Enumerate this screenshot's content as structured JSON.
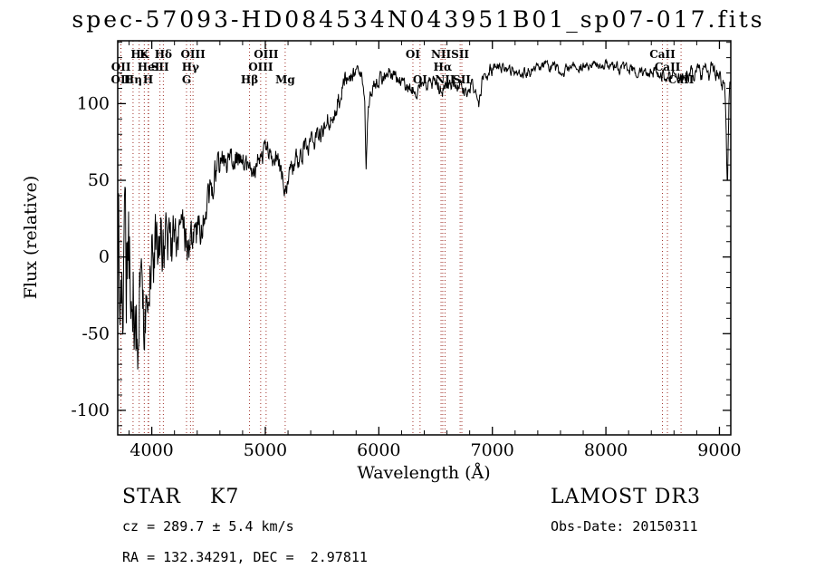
{
  "title": "spec-57093-HD084534N043951B01_sp07-017.fits",
  "chart_data": {
    "type": "line",
    "title": "spec-57093-HD084534N043951B01_sp07-017.fits",
    "xlabel": "Wavelength (Å)",
    "ylabel": "Flux (relative)",
    "xlim": [
      3700,
      9100
    ],
    "ylim": [
      -116,
      141
    ],
    "x_ticks": [
      4000,
      5000,
      6000,
      7000,
      8000,
      9000
    ],
    "y_ticks": [
      -100,
      -50,
      0,
      50,
      100
    ],
    "x_minor_step": 200,
    "y_minor_step": 10,
    "grid": false,
    "legend": "none",
    "line_color": "#000000",
    "marker_line_color": "#a03028",
    "marker_label_color": "#1a1a1a",
    "series": [
      {
        "name": "flux",
        "note": "anchor points [wavelength_A, flux_relative, noise_sigma] tracing the spectrum envelope",
        "anchors": [
          [
            3700,
            -5,
            40
          ],
          [
            3740,
            -15,
            45
          ],
          [
            3780,
            -20,
            45
          ],
          [
            3820,
            -25,
            42
          ],
          [
            3860,
            -15,
            40
          ],
          [
            3900,
            -20,
            38
          ],
          [
            3940,
            -18,
            34
          ],
          [
            3980,
            -8,
            30
          ],
          [
            4020,
            -5,
            26
          ],
          [
            4060,
            0,
            22
          ],
          [
            4100,
            3,
            20
          ],
          [
            4150,
            6,
            18
          ],
          [
            4200,
            10,
            16
          ],
          [
            4250,
            12,
            15
          ],
          [
            4300,
            8,
            14
          ],
          [
            4340,
            12,
            13
          ],
          [
            4380,
            16,
            12
          ],
          [
            4420,
            20,
            12
          ],
          [
            4460,
            28,
            11
          ],
          [
            4500,
            38,
            10
          ],
          [
            4540,
            50,
            9
          ],
          [
            4580,
            58,
            8
          ],
          [
            4620,
            62,
            8
          ],
          [
            4660,
            63,
            7
          ],
          [
            4700,
            64,
            7
          ],
          [
            4750,
            65,
            7
          ],
          [
            4800,
            63,
            7
          ],
          [
            4840,
            58,
            7
          ],
          [
            4870,
            54,
            7
          ],
          [
            4900,
            58,
            7
          ],
          [
            4950,
            66,
            6
          ],
          [
            5000,
            70,
            6
          ],
          [
            5040,
            68,
            6
          ],
          [
            5080,
            66,
            6
          ],
          [
            5120,
            60,
            6
          ],
          [
            5160,
            48,
            6
          ],
          [
            5190,
            44,
            6
          ],
          [
            5230,
            56,
            6
          ],
          [
            5280,
            64,
            6
          ],
          [
            5340,
            69,
            6
          ],
          [
            5400,
            74,
            6
          ],
          [
            5460,
            79,
            6
          ],
          [
            5520,
            85,
            6
          ],
          [
            5580,
            92,
            6
          ],
          [
            5640,
            102,
            6
          ],
          [
            5690,
            112,
            7
          ],
          [
            5730,
            120,
            6
          ],
          [
            5770,
            121,
            5
          ],
          [
            5810,
            119,
            5
          ],
          [
            5850,
            115,
            5
          ],
          [
            5875,
            100,
            4
          ],
          [
            5888,
            60,
            4
          ],
          [
            5902,
            95,
            4
          ],
          [
            5930,
            108,
            4
          ],
          [
            5970,
            113,
            4
          ],
          [
            6010,
            116,
            4
          ],
          [
            6060,
            119,
            4
          ],
          [
            6110,
            120,
            4
          ],
          [
            6160,
            117,
            4
          ],
          [
            6210,
            114,
            4
          ],
          [
            6260,
            111,
            4
          ],
          [
            6310,
            108,
            4
          ],
          [
            6360,
            110,
            4
          ],
          [
            6410,
            113,
            4
          ],
          [
            6460,
            114,
            4
          ],
          [
            6510,
            112,
            4
          ],
          [
            6560,
            110,
            4
          ],
          [
            6610,
            113,
            4
          ],
          [
            6660,
            114,
            4
          ],
          [
            6710,
            111,
            4
          ],
          [
            6760,
            109,
            4
          ],
          [
            6810,
            113,
            4
          ],
          [
            6855,
            104,
            4
          ],
          [
            6880,
            100,
            4
          ],
          [
            6910,
            116,
            4
          ],
          [
            6960,
            121,
            4
          ],
          [
            7010,
            123,
            4
          ],
          [
            7060,
            124,
            3
          ],
          [
            7120,
            123,
            3
          ],
          [
            7180,
            121,
            3
          ],
          [
            7240,
            121,
            3
          ],
          [
            7300,
            120,
            3
          ],
          [
            7360,
            122,
            3
          ],
          [
            7420,
            124,
            3
          ],
          [
            7480,
            125,
            3
          ],
          [
            7540,
            124,
            3
          ],
          [
            7600,
            119,
            3
          ],
          [
            7650,
            122,
            3
          ],
          [
            7710,
            124,
            3
          ],
          [
            7770,
            125,
            3
          ],
          [
            7830,
            125,
            3
          ],
          [
            7890,
            126,
            3
          ],
          [
            7950,
            125,
            3
          ],
          [
            8010,
            126,
            3
          ],
          [
            8070,
            124,
            3
          ],
          [
            8130,
            123,
            3
          ],
          [
            8190,
            123,
            3
          ],
          [
            8250,
            122,
            3
          ],
          [
            8310,
            121,
            3
          ],
          [
            8370,
            120,
            3
          ],
          [
            8430,
            119,
            4
          ],
          [
            8490,
            117,
            4
          ],
          [
            8550,
            118,
            4
          ],
          [
            8610,
            119,
            4
          ],
          [
            8670,
            117,
            4
          ],
          [
            8730,
            119,
            4
          ],
          [
            8790,
            120,
            4
          ],
          [
            8850,
            118,
            5
          ],
          [
            8910,
            120,
            5
          ],
          [
            8950,
            123,
            5
          ],
          [
            8990,
            118,
            5
          ],
          [
            9020,
            112,
            5
          ],
          [
            9050,
            105,
            6
          ],
          [
            9070,
            40,
            5
          ],
          [
            9085,
            110,
            4
          ],
          [
            9100,
            115,
            4
          ]
        ]
      }
    ],
    "spectral_lines": [
      {
        "wl": 3727,
        "label": "OII",
        "row": 2
      },
      {
        "wl": 3729,
        "label": "OII",
        "row": 1
      },
      {
        "wl": 3835,
        "label": "Hη",
        "row": 2
      },
      {
        "wl": 3889,
        "label": "Hε",
        "row": 0
      },
      {
        "wl": 3934,
        "label": "K",
        "row": 0
      },
      {
        "wl": 3968,
        "label": "H",
        "row": 2
      },
      {
        "wl": 3972,
        "label": "HeI",
        "row": 1
      },
      {
        "wl": 4072,
        "label": "SII",
        "row": 1
      },
      {
        "wl": 4102,
        "label": "Hδ",
        "row": 0
      },
      {
        "wl": 4306,
        "label": "G",
        "row": 2
      },
      {
        "wl": 4341,
        "label": "Hγ",
        "row": 1
      },
      {
        "wl": 4363,
        "label": "OIII",
        "row": 0
      },
      {
        "wl": 4861,
        "label": "Hβ",
        "row": 2
      },
      {
        "wl": 4959,
        "label": "OIII",
        "row": 1
      },
      {
        "wl": 5007,
        "label": "OIII",
        "row": 0
      },
      {
        "wl": 5175,
        "label": "Mg",
        "row": 2
      },
      {
        "wl": 6300,
        "label": "OI",
        "row": 0
      },
      {
        "wl": 6363,
        "label": "OI",
        "row": 2
      },
      {
        "wl": 6548,
        "label": "NII",
        "row": 0
      },
      {
        "wl": 6563,
        "label": "Hα",
        "row": 1
      },
      {
        "wl": 6583,
        "label": "NII",
        "row": 2
      },
      {
        "wl": 6716,
        "label": "SII",
        "row": 0
      },
      {
        "wl": 6731,
        "label": "SII",
        "row": 2
      },
      {
        "wl": 8498,
        "label": "CaII",
        "row": 0
      },
      {
        "wl": 8542,
        "label": "CaII",
        "row": 1
      },
      {
        "wl": 8662,
        "label": "CaII",
        "row": 2
      }
    ]
  },
  "annotations": {
    "class_label": "STAR    K7",
    "survey": "LAMOST DR3",
    "cz": "cz = 289.7 ± 5.4 km/s",
    "obs_date": "Obs-Date: 20150311",
    "radec": "RA = 132.34291, DEC =  2.97811"
  }
}
